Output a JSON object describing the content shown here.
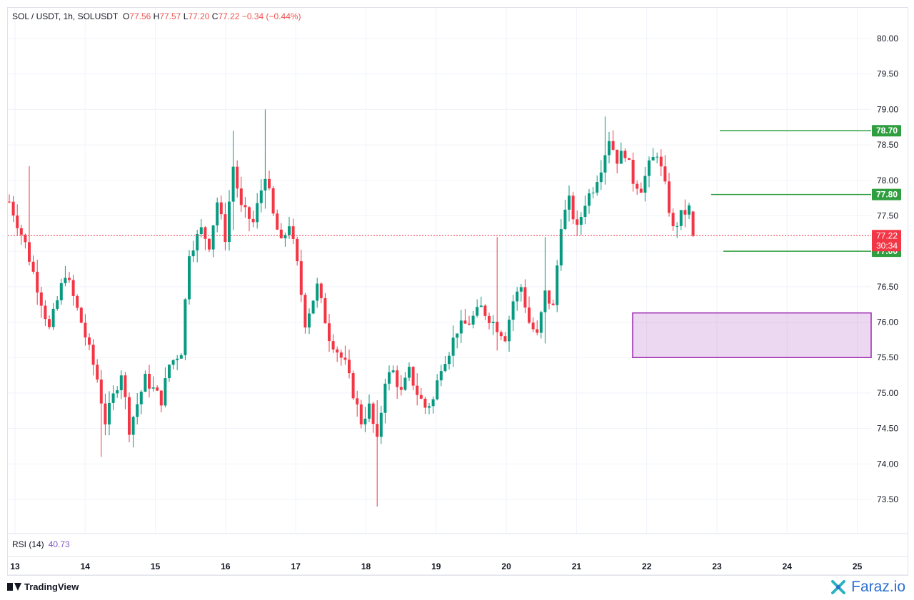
{
  "legend": {
    "symbol": "SOL / USDT, 1h, SOLUSDT",
    "o_label": "O",
    "o": "77.56",
    "h_label": "H",
    "h": "77.57",
    "l_label": "L",
    "l": "77.20",
    "c_label": "C",
    "c": "77.22",
    "change": "−0.34 (−0.44%)"
  },
  "rsi": {
    "label": "RSI (14)",
    "value": "40.73"
  },
  "branding": {
    "tradingview": "TradingView",
    "faraz": "Faraz.io"
  },
  "colors": {
    "up": "#089981",
    "down": "#f23645",
    "level": "#2e9e3f",
    "zone": "#9c27b0",
    "price_tag": "#f23645"
  },
  "chart_data": {
    "type": "candlestick",
    "x_ticks": [
      "13",
      "14",
      "15",
      "16",
      "17",
      "18",
      "19",
      "20",
      "21",
      "22",
      "23",
      "24",
      "25"
    ],
    "y_ticks": [
      "73.50",
      "74.00",
      "74.50",
      "75.00",
      "75.50",
      "76.00",
      "76.50",
      "77.00",
      "77.50",
      "78.00",
      "78.50",
      "79.00",
      "79.50",
      "80.00"
    ],
    "ylim": [
      73.0,
      80.5
    ],
    "current_price": {
      "value": 77.22,
      "label": "77.22",
      "countdown": "30:34"
    },
    "levels": [
      {
        "value": 78.7,
        "label": "78.70"
      },
      {
        "value": 77.8,
        "label": "77.80"
      },
      {
        "value": 77.0,
        "label": "77.00"
      }
    ],
    "zone": {
      "low": 75.5,
      "high": 76.13
    },
    "price_path": [
      [
        0,
        77.7
      ],
      [
        4,
        77.1
      ],
      [
        8,
        76.3
      ],
      [
        10,
        75.9
      ],
      [
        14,
        76.7
      ],
      [
        18,
        76.0
      ],
      [
        22,
        75.2
      ],
      [
        24,
        74.6
      ],
      [
        28,
        75.3
      ],
      [
        30,
        74.5
      ],
      [
        34,
        75.2
      ],
      [
        38,
        74.9
      ],
      [
        40,
        75.4
      ],
      [
        43,
        75.6
      ],
      [
        45,
        77.0
      ],
      [
        48,
        77.3
      ],
      [
        50,
        77.1
      ],
      [
        52,
        77.7
      ],
      [
        54,
        77.2
      ],
      [
        56,
        78.2
      ],
      [
        58,
        77.6
      ],
      [
        61,
        77.4
      ],
      [
        64,
        78.1
      ],
      [
        66,
        77.5
      ],
      [
        68,
        77.1
      ],
      [
        70,
        77.4
      ],
      [
        72,
        76.8
      ],
      [
        74,
        76.0
      ],
      [
        77,
        76.5
      ],
      [
        80,
        75.8
      ],
      [
        84,
        75.4
      ],
      [
        88,
        74.6
      ],
      [
        90,
        74.8
      ],
      [
        92,
        74.3
      ],
      [
        94,
        75.2
      ],
      [
        96,
        75.3
      ],
      [
        98,
        75.0
      ],
      [
        100,
        75.3
      ],
      [
        102,
        75.0
      ],
      [
        104,
        74.8
      ],
      [
        106,
        74.9
      ],
      [
        108,
        75.4
      ],
      [
        110,
        75.6
      ],
      [
        112,
        75.9
      ],
      [
        115,
        76.0
      ],
      [
        118,
        76.2
      ],
      [
        121,
        76.0
      ],
      [
        124,
        75.8
      ],
      [
        126,
        76.3
      ],
      [
        128,
        76.5
      ],
      [
        130,
        76.0
      ],
      [
        132,
        75.8
      ],
      [
        134,
        76.4
      ],
      [
        136,
        76.2
      ],
      [
        138,
        77.4
      ],
      [
        140,
        77.7
      ],
      [
        142,
        77.3
      ],
      [
        144,
        77.7
      ],
      [
        146,
        77.9
      ],
      [
        148,
        78.2
      ],
      [
        150,
        78.6
      ],
      [
        152,
        78.3
      ],
      [
        154,
        78.4
      ],
      [
        156,
        78.0
      ],
      [
        158,
        77.9
      ],
      [
        160,
        78.2
      ],
      [
        162,
        78.4
      ],
      [
        164,
        77.9
      ],
      [
        166,
        77.3
      ],
      [
        168,
        77.5
      ],
      [
        170,
        77.6
      ],
      [
        171,
        77.22
      ]
    ],
    "volatile_spikes": [
      {
        "x": 5,
        "high": 78.2,
        "low": 76.8
      },
      {
        "x": 23,
        "high": 75.1,
        "low": 74.1
      },
      {
        "x": 56,
        "high": 78.7,
        "low": 77.3
      },
      {
        "x": 64,
        "high": 79.0,
        "low": 77.6
      },
      {
        "x": 92,
        "high": 74.9,
        "low": 73.4
      },
      {
        "x": 122,
        "high": 77.2,
        "low": 75.6
      },
      {
        "x": 134,
        "high": 77.2,
        "low": 75.7
      },
      {
        "x": 149,
        "high": 78.9,
        "low": 78.1
      }
    ]
  }
}
